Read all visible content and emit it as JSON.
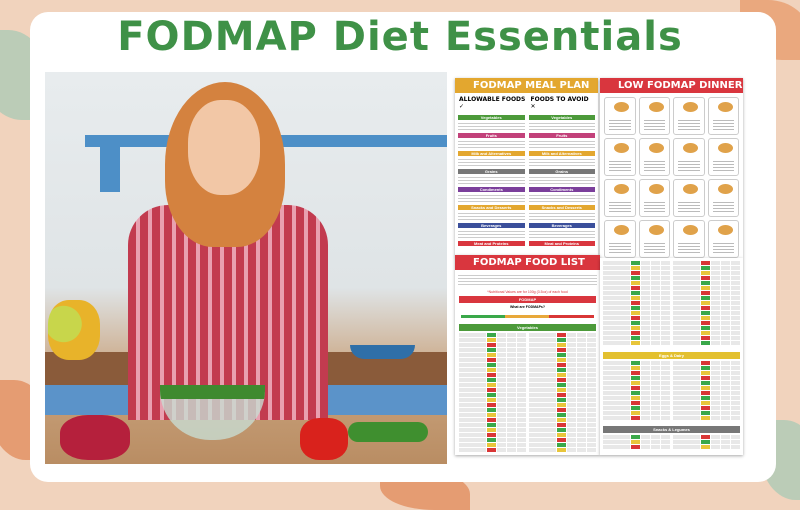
{
  "title": "FODMAP Diet Essentials",
  "colors": {
    "title": "#3f9147",
    "background": "#f1d3bd",
    "meal_plan_header": "#e3a72f",
    "dinner_header": "#d9363e",
    "food_list_header": "#d9363e"
  },
  "meal_plan": {
    "title": "FODMAP MEAL PLAN",
    "allowable": "ALLOWABLE FOODS ✓",
    "avoid": "FOODS TO AVOID ✕",
    "categories": [
      "Vegetables",
      "Fruits",
      "Milk and Alternatives",
      "Grains",
      "Condiments",
      "Snacks and Desserts",
      "Beverages",
      "Meat and Proteins"
    ]
  },
  "dinner": {
    "title": "LOW FODMAP DINNER"
  },
  "food_list": {
    "title": "FODMAP FOOD LIST",
    "note": "*Nutritional Values are for 100g (3.5oz) of each food",
    "section": "FODMAP",
    "question": "What are FODMAPs?",
    "table_title": "Vegetables"
  },
  "tables": {
    "dairy": "Eggs & Dairy",
    "legumes": "Snacks & Legumes"
  }
}
